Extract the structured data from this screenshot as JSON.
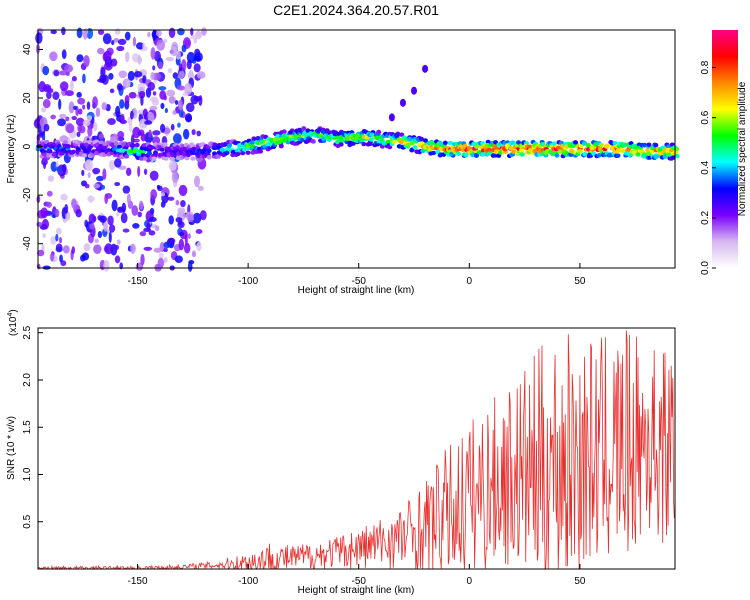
{
  "title": "C2E1.2024.364.20.57.R01",
  "colors": {
    "snr_line": "#e8302e",
    "axis": "#000000"
  },
  "chart_data": [
    {
      "type": "heatmap",
      "xlabel": "Height of straight line (km)",
      "ylabel": "Frequency (Hz)",
      "xlim": [
        -195,
        93
      ],
      "ylim": [
        -50,
        48
      ],
      "xticks": [
        -150,
        -100,
        -50,
        0,
        50
      ],
      "yticks": [
        -40,
        -20,
        0,
        20,
        40
      ],
      "grid": false,
      "colorbar": {
        "label": "Normalized spectral amplitude",
        "range": [
          0,
          0.95
        ],
        "ticks": [
          0.0,
          0.2,
          0.4,
          0.6,
          0.8
        ],
        "colormap": [
          "#ffffff",
          "#d6b8f0",
          "#7a00ff",
          "#0000ff",
          "#00ffff",
          "#00ff00",
          "#ffff00",
          "#ff8800",
          "#ff0000",
          "#ff0088"
        ]
      },
      "ridge": {
        "x": [
          -195,
          -180,
          -165,
          -150,
          -140,
          -130,
          -120,
          -110,
          -100,
          -90,
          -80,
          -70,
          -60,
          -50,
          -40,
          -30,
          -20,
          -10,
          0,
          10,
          20,
          30,
          40,
          50,
          60,
          70,
          80,
          93
        ],
        "center": [
          -1,
          -1,
          -1,
          -2,
          -2,
          -2,
          -2,
          -1,
          0,
          2,
          4,
          5,
          3,
          4,
          3,
          2,
          0,
          -1,
          -1,
          -1,
          -1,
          -1,
          -1,
          -1,
          -1,
          -1,
          -2,
          -2
        ],
        "peak": [
          0.4,
          0.35,
          0.3,
          0.55,
          0.3,
          0.3,
          0.35,
          0.5,
          0.6,
          0.65,
          0.6,
          0.55,
          0.6,
          0.65,
          0.6,
          0.7,
          0.75,
          0.85,
          0.9,
          0.9,
          0.9,
          0.9,
          0.85,
          0.9,
          0.85,
          0.85,
          0.8,
          0.8
        ]
      },
      "branch": {
        "x": [
          -35,
          -30,
          -25,
          -20
        ],
        "y": [
          12,
          18,
          23,
          32
        ],
        "value": 0.25
      },
      "noise_region": {
        "x": [
          -195,
          -120
        ],
        "ylim": [
          -50,
          48
        ],
        "level": 0.25
      }
    },
    {
      "type": "line",
      "xlabel": "Height of straight line (km)",
      "ylabel": "SNR (10 * v/v)",
      "y_multiplier": "(x10",
      "y_multiplier_exp": "4",
      "xlim": [
        -195,
        93
      ],
      "ylim": [
        0,
        2.55
      ],
      "xticks": [
        -150,
        -100,
        -50,
        0,
        50
      ],
      "yticks": [
        0.5,
        1.0,
        1.5,
        2.0,
        2.5
      ],
      "grid": false,
      "envelope": {
        "x": [
          -195,
          -150,
          -130,
          -115,
          -100,
          -90,
          -80,
          -70,
          -60,
          -50,
          -40,
          -30,
          -20,
          -10,
          0,
          10,
          20,
          30,
          40,
          50,
          60,
          70,
          80,
          93
        ],
        "mean": [
          0.01,
          0.01,
          0.02,
          0.04,
          0.07,
          0.1,
          0.12,
          0.14,
          0.18,
          0.22,
          0.28,
          0.33,
          0.45,
          0.6,
          0.75,
          0.9,
          1.0,
          1.05,
          1.15,
          1.2,
          1.25,
          1.3,
          1.35,
          1.3
        ],
        "max": [
          0.03,
          0.03,
          0.05,
          0.08,
          0.18,
          0.3,
          0.25,
          0.3,
          0.35,
          0.45,
          0.55,
          0.7,
          0.95,
          1.3,
          1.6,
          1.8,
          2.0,
          2.3,
          2.55,
          2.45,
          2.45,
          2.55,
          2.4,
          2.35
        ]
      }
    }
  ]
}
